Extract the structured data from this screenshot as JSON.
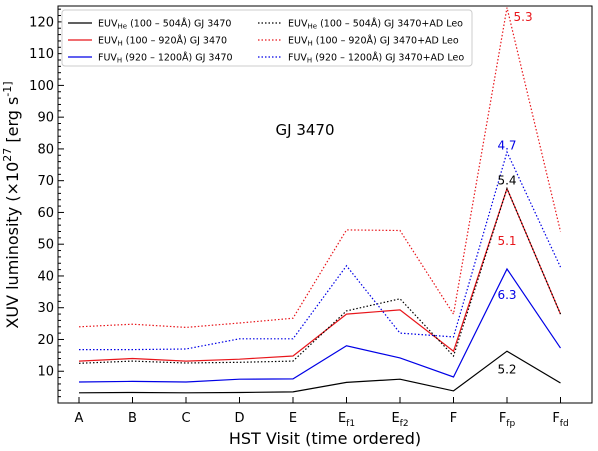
{
  "chart_data": {
    "type": "line",
    "annotation_title": "GJ 3470",
    "xlabel": "HST Visit (time ordered)",
    "ylabel": "XUV luminosity (×10^27 [erg s^-1]",
    "ylim": [
      0,
      125
    ],
    "yticks": [
      10,
      20,
      30,
      40,
      50,
      60,
      70,
      80,
      90,
      100,
      110,
      120
    ],
    "categories": [
      {
        "main": "A",
        "sub": ""
      },
      {
        "main": "B",
        "sub": ""
      },
      {
        "main": "C",
        "sub": ""
      },
      {
        "main": "D",
        "sub": ""
      },
      {
        "main": "E",
        "sub": ""
      },
      {
        "main": "E",
        "sub": "f1"
      },
      {
        "main": "E",
        "sub": "f2"
      },
      {
        "main": "F",
        "sub": ""
      },
      {
        "main": "F",
        "sub": "fp"
      },
      {
        "main": "F",
        "sub": "fd"
      }
    ],
    "series": [
      {
        "name_main": "EUV",
        "name_sub": "He",
        "name_rest": " (100 – 504Å) GJ 3470",
        "color": "#000000",
        "dash": "solid",
        "values": [
          3.2,
          3.3,
          3.2,
          3.3,
          3.5,
          6.5,
          7.5,
          3.8,
          16.3,
          6.3
        ]
      },
      {
        "name_main": "EUV",
        "name_sub": "H",
        "name_rest": " (100 – 920Å) GJ 3470",
        "color": "#e8161b",
        "dash": "solid",
        "values": [
          13.2,
          14.0,
          13.2,
          13.8,
          14.8,
          28.0,
          29.3,
          16.3,
          67.5,
          28.0
        ]
      },
      {
        "name_main": "FUV",
        "name_sub": "H",
        "name_rest": " (920 – 1200Å) GJ 3470",
        "color": "#0000e6",
        "dash": "solid",
        "values": [
          6.6,
          6.8,
          6.6,
          7.5,
          7.6,
          18.0,
          14.2,
          8.2,
          42.2,
          17.3
        ]
      },
      {
        "name_main": "EUV",
        "name_sub": "He",
        "name_rest": " (100 – 504Å) GJ 3470+AD Leo",
        "color": "#000000",
        "dash": "dotted",
        "values": [
          12.5,
          13.2,
          12.6,
          12.8,
          13.2,
          29.0,
          32.8,
          14.8,
          67.5,
          28.0
        ]
      },
      {
        "name_main": "EUV",
        "name_sub": "H",
        "name_rest": " (100 – 920Å) GJ 3470+AD Leo",
        "color": "#e8161b",
        "dash": "dotted",
        "values": [
          24.0,
          24.8,
          23.8,
          25.2,
          26.7,
          54.5,
          54.3,
          28.0,
          124.5,
          54.0
        ]
      },
      {
        "name_main": "FUV",
        "name_sub": "H",
        "name_rest": " (920 – 1200Å) GJ 3470+AD Leo",
        "color": "#0000e6",
        "dash": "dotted",
        "values": [
          16.8,
          16.8,
          17.0,
          20.2,
          20.2,
          43.2,
          22.0,
          20.8,
          79.0,
          42.8
        ]
      }
    ],
    "annotations": [
      {
        "text": "5.3",
        "x": 8.3,
        "y": 121.5,
        "color": "#e8161b"
      },
      {
        "text": "4.7",
        "x": 8.0,
        "y": 81.0,
        "color": "#0000e6"
      },
      {
        "text": "5.4",
        "x": 8.0,
        "y": 70.0,
        "color": "#000000"
      },
      {
        "text": "5.1",
        "x": 8.0,
        "y": 51.0,
        "color": "#e8161b"
      },
      {
        "text": "6.3",
        "x": 8.0,
        "y": 34.0,
        "color": "#0000e6"
      },
      {
        "text": "5.2",
        "x": 8.0,
        "y": 10.5,
        "color": "#000000"
      }
    ],
    "legend_position": "top-left",
    "grid": false
  }
}
